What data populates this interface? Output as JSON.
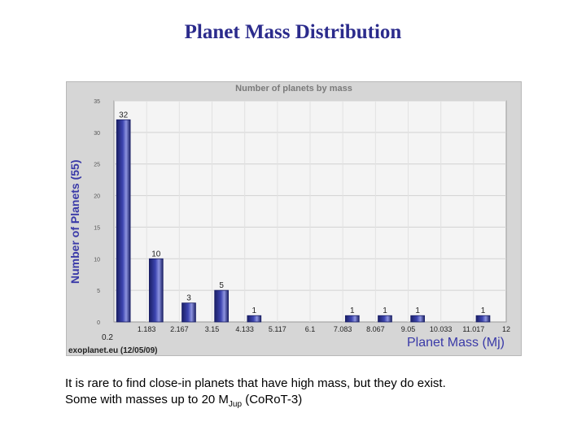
{
  "slide": {
    "title": "Planet Mass Distribution",
    "caption_line1": "It is rare to find close-in planets that have high mass, but they do exist.",
    "caption_line2_pre": "Some with masses up to 20 M",
    "caption_line2_sub": "Jup",
    "caption_line2_post": " (CoRoT-3)"
  },
  "chart_data": {
    "type": "bar",
    "title": "Number of planets by mass",
    "ylabel": "Number of Planets (55)",
    "xlabel": "Planet Mass (Mj)",
    "source": "exoplanet.eu (12/05/09)",
    "x_ticks": [
      "0.2",
      "1.183",
      "2.167",
      "3.15",
      "4.133",
      "5.117",
      "6.1",
      "7.083",
      "8.067",
      "9.05",
      "10.033",
      "11.017",
      "12"
    ],
    "y_ticks": [
      0,
      5,
      10,
      15,
      20,
      25,
      30,
      35
    ],
    "ylim": [
      0,
      35
    ],
    "bins": [
      {
        "index": 0,
        "value": 32
      },
      {
        "index": 1,
        "value": 10
      },
      {
        "index": 2,
        "value": 3
      },
      {
        "index": 3,
        "value": 5
      },
      {
        "index": 4,
        "value": 1
      },
      {
        "index": 7,
        "value": 1
      },
      {
        "index": 8,
        "value": 1
      },
      {
        "index": 9,
        "value": 1
      },
      {
        "index": 11,
        "value": 1
      }
    ],
    "colors": {
      "bar_fill": "#3d45b0",
      "bar_dark": "#1a1f66",
      "grid": "#ffffff",
      "plot_bg": "#ffffff",
      "panel_bg": "#d6d6d6"
    },
    "grid": true
  }
}
